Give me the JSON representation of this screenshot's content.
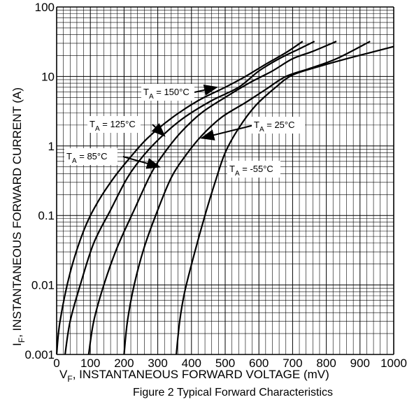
{
  "chart_data": {
    "type": "line",
    "caption": "Figure 2 Typical Forward Characteristics",
    "xlabel": {
      "main": "V",
      "sub": "F",
      "rest": ", INSTANTANEOUS FORWARD VOLTAGE (mV)"
    },
    "ylabel": {
      "main": "I",
      "sub": "F",
      "rest": ", INSTANTANEOUS FORWARD CURRENT (A)"
    },
    "xlim": [
      0,
      1000
    ],
    "ylim": [
      0.001,
      100
    ],
    "yscale": "log",
    "grid": true,
    "x_ticks": [
      {
        "value": 0,
        "label": "0"
      },
      {
        "value": 100,
        "label": "100"
      },
      {
        "value": 200,
        "label": "200"
      },
      {
        "value": 300,
        "label": "300"
      },
      {
        "value": 400,
        "label": "400"
      },
      {
        "value": 500,
        "label": "500"
      },
      {
        "value": 600,
        "label": "600"
      },
      {
        "value": 700,
        "label": "700"
      },
      {
        "value": 800,
        "label": "800"
      },
      {
        "value": 900,
        "label": "900"
      },
      {
        "value": 1000,
        "label": "1000"
      }
    ],
    "y_ticks": [
      {
        "value": 0.001,
        "label": "0.001"
      },
      {
        "value": 0.01,
        "label": "0.01"
      },
      {
        "value": 0.1,
        "label": "0.1"
      },
      {
        "value": 1,
        "label": "1"
      },
      {
        "value": 10,
        "label": "10"
      },
      {
        "value": 100,
        "label": "100"
      }
    ],
    "series": [
      {
        "name": "T_A = 150°C",
        "points": [
          [
            0,
            0.001
          ],
          [
            10,
            0.003
          ],
          [
            40,
            0.015
          ],
          [
            80,
            0.06
          ],
          [
            120,
            0.15
          ],
          [
            170,
            0.35
          ],
          [
            220,
            0.7
          ],
          [
            270,
            1.3
          ],
          [
            340,
            2.5
          ],
          [
            420,
            4.5
          ],
          [
            500,
            7
          ],
          [
            560,
            10
          ],
          [
            620,
            15
          ],
          [
            680,
            22
          ],
          [
            730,
            32
          ]
        ]
      },
      {
        "name": "T_A = 125°C",
        "points": [
          [
            25,
            0.001
          ],
          [
            40,
            0.003
          ],
          [
            70,
            0.01
          ],
          [
            110,
            0.04
          ],
          [
            160,
            0.12
          ],
          [
            210,
            0.35
          ],
          [
            260,
            0.75
          ],
          [
            320,
            1.5
          ],
          [
            380,
            2.6
          ],
          [
            460,
            4.5
          ],
          [
            540,
            7
          ],
          [
            600,
            12
          ],
          [
            660,
            18
          ],
          [
            720,
            25
          ],
          [
            765,
            32
          ]
        ]
      },
      {
        "name": "T_A = 85°C",
        "points": [
          [
            95,
            0.001
          ],
          [
            110,
            0.003
          ],
          [
            140,
            0.01
          ],
          [
            180,
            0.035
          ],
          [
            230,
            0.12
          ],
          [
            280,
            0.4
          ],
          [
            320,
            0.8
          ],
          [
            370,
            1.6
          ],
          [
            430,
            3
          ],
          [
            500,
            5
          ],
          [
            570,
            8
          ],
          [
            640,
            12
          ],
          [
            700,
            18
          ],
          [
            760,
            23
          ],
          [
            830,
            32
          ]
        ]
      },
      {
        "name": "T_A = 25°C",
        "points": [
          [
            200,
            0.001
          ],
          [
            210,
            0.003
          ],
          [
            230,
            0.01
          ],
          [
            260,
            0.035
          ],
          [
            300,
            0.12
          ],
          [
            340,
            0.35
          ],
          [
            380,
            0.7
          ],
          [
            430,
            1.4
          ],
          [
            490,
            2.6
          ],
          [
            560,
            4.2
          ],
          [
            620,
            6.5
          ],
          [
            680,
            10
          ],
          [
            750,
            13
          ],
          [
            830,
            18
          ],
          [
            930,
            32
          ]
        ]
      },
      {
        "name": "T_A = -55°C",
        "points": [
          [
            355,
            0.001
          ],
          [
            365,
            0.003
          ],
          [
            380,
            0.008
          ],
          [
            410,
            0.03
          ],
          [
            440,
            0.1
          ],
          [
            470,
            0.3
          ],
          [
            500,
            0.8
          ],
          [
            540,
            1.8
          ],
          [
            590,
            3.8
          ],
          [
            650,
            7
          ],
          [
            700,
            10.5
          ],
          [
            780,
            14
          ],
          [
            860,
            18
          ],
          [
            930,
            22
          ],
          [
            1000,
            27
          ]
        ]
      }
    ],
    "annotations": [
      {
        "main": "T",
        "sub": "A",
        "rest": " = 150°C",
        "target": [
          475,
          7
        ]
      },
      {
        "main": "T",
        "sub": "A",
        "rest": " = 125°C",
        "target": [
          320,
          1.4
        ]
      },
      {
        "main": "T",
        "sub": "A",
        "rest": " = 85°C",
        "target": [
          305,
          0.5
        ]
      },
      {
        "main": "T",
        "sub": "A",
        "rest": " = 25°C",
        "target": [
          430,
          1.3
        ]
      },
      {
        "main": "T",
        "sub": "A",
        "rest": " = -55°C",
        "target": null
      }
    ]
  }
}
